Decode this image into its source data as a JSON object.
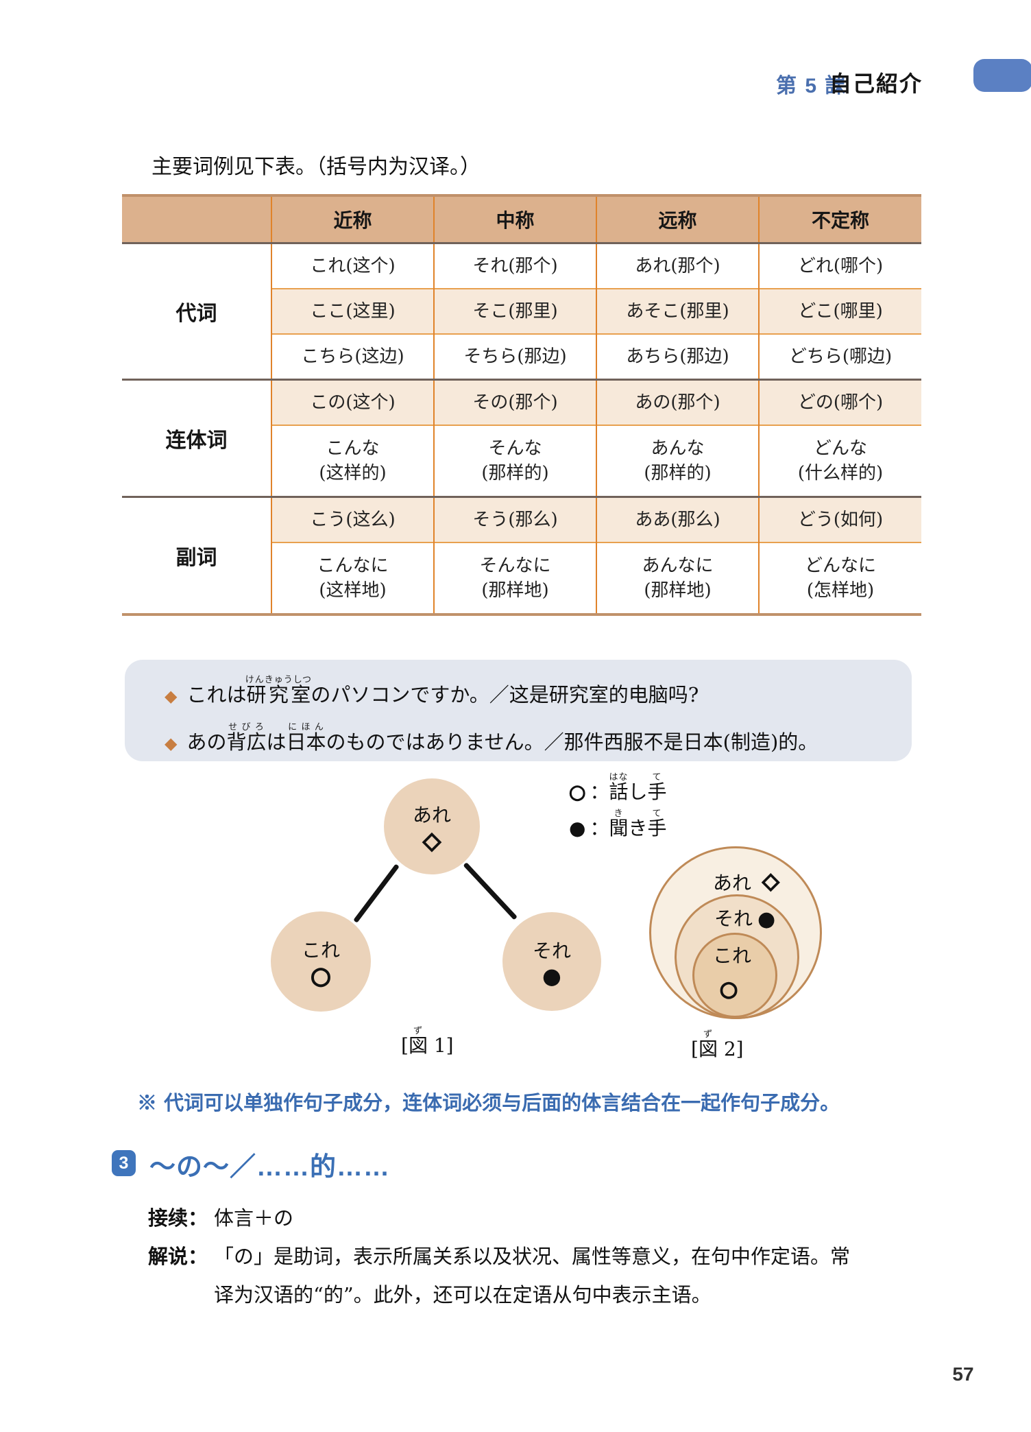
{
  "header": {
    "lesson": "第 5 課",
    "title": "自己紹介"
  },
  "intro": "主要词例见下表。（括号内为汉译。）",
  "table": {
    "columns": [
      "近称",
      "中称",
      "远称",
      "不定称"
    ],
    "groups": [
      {
        "label": "代词",
        "rows": [
          [
            "これ(这个)",
            "それ(那个)",
            "あれ(那个)",
            "どれ(哪个)"
          ],
          [
            "ここ(这里)",
            "そこ(那里)",
            "あそこ(那里)",
            "どこ(哪里)"
          ],
          [
            "こちら(这边)",
            "そちら(那边)",
            "あちら(那边)",
            "どちら(哪边)"
          ]
        ]
      },
      {
        "label": "连体词",
        "rows": [
          [
            "この(这个)",
            "その(那个)",
            "あの(那个)",
            "どの(哪个)"
          ],
          [
            "こんな\n(这样的)",
            "そんな\n(那样的)",
            "あんな\n(那样的)",
            "どんな\n(什么样的)"
          ]
        ]
      },
      {
        "label": "副词",
        "rows": [
          [
            "こう(这么)",
            "そう(那么)",
            "ああ(那么)",
            "どう(如何)"
          ],
          [
            "こんなに\n(这样地)",
            "そんなに\n(那样地)",
            "あんなに\n(那样地)",
            "どんなに\n(怎样地)"
          ]
        ]
      }
    ]
  },
  "examples": [
    {
      "bullet": "◆",
      "segments": [
        {
          "t": "これは"
        },
        {
          "t": "研究室",
          "r": "けんきゅうしつ"
        },
        {
          "t": "のパソコンですか。／这是研究室的电脑吗?"
        }
      ]
    },
    {
      "bullet": "◆",
      "segments": [
        {
          "t": "あの"
        },
        {
          "t": "背広",
          "r": "せびろ"
        },
        {
          "t": "は"
        },
        {
          "t": "日本",
          "r": "にほん"
        },
        {
          "t": "のものではありません。／那件西服不是日本(制造)的。"
        }
      ]
    }
  ],
  "legend": [
    {
      "symbol": "○",
      "segments": [
        {
          "t": "："
        },
        {
          "t": "話",
          "r": "はな"
        },
        {
          "t": "し"
        },
        {
          "t": "手",
          "r": "て"
        }
      ]
    },
    {
      "symbol": "●",
      "segments": [
        {
          "t": "："
        },
        {
          "t": "聞",
          "r": "き"
        },
        {
          "t": "き"
        },
        {
          "t": "手",
          "r": "て"
        }
      ]
    }
  ],
  "figure1": {
    "top": {
      "label": "あれ",
      "symbol": "◇"
    },
    "left": {
      "label": "これ",
      "symbol": "○"
    },
    "right": {
      "label": "それ",
      "symbol": "●"
    },
    "caption": [
      {
        "t": "["
      },
      {
        "t": "図",
        "r": "ず"
      },
      {
        "t": " 1]"
      }
    ]
  },
  "figure2": {
    "rings": [
      {
        "label": "あれ",
        "symbol": "◇"
      },
      {
        "label": "それ",
        "symbol": "●"
      },
      {
        "label": "これ",
        "symbol": "○"
      }
    ],
    "caption": [
      {
        "t": "["
      },
      {
        "t": "図",
        "r": "ず"
      },
      {
        "t": " 2]"
      }
    ]
  },
  "note": "※ 代词可以单独作句子成分，连体词必须与后面的体言结合在一起作句子成分。",
  "section3": {
    "number": "3",
    "title": "～の～／……的……",
    "items": [
      {
        "label": "接续：",
        "lines": [
          "体言＋の"
        ]
      },
      {
        "label": "解说：",
        "lines": [
          "「の」是助词，表示所属关系以及状况、属性等意义，在句中作定语。常",
          "译为汉语的“的”。此外，还可以在定语从句中表示主语。"
        ]
      }
    ]
  },
  "page": {
    "number": "57"
  },
  "colors": {
    "table_header_bg": "#dcb18d",
    "table_row_alt_bg": "#f7e9da",
    "table_border_orange": "#e0832a",
    "table_border_dark": "#70625a",
    "note_blue": "#3a6bb0",
    "heading_blue": "#3a6fb5",
    "tab_blue": "#5b80c3",
    "bullet_orange": "#c87e41",
    "figure_circle_fill": "#ebd3ba",
    "ring_stroke": "#bf8a57",
    "example_box_bg": "#e3e7ef"
  }
}
